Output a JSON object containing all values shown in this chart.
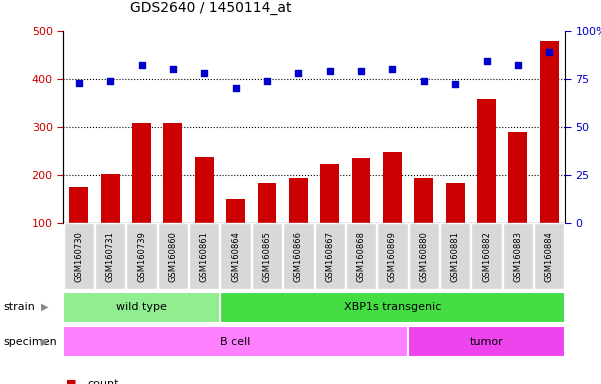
{
  "title": "GDS2640 / 1450114_at",
  "samples": [
    "GSM160730",
    "GSM160731",
    "GSM160739",
    "GSM160860",
    "GSM160861",
    "GSM160864",
    "GSM160865",
    "GSM160866",
    "GSM160867",
    "GSM160868",
    "GSM160869",
    "GSM160880",
    "GSM160881",
    "GSM160882",
    "GSM160883",
    "GSM160884"
  ],
  "counts": [
    175,
    202,
    308,
    307,
    237,
    150,
    183,
    194,
    222,
    235,
    247,
    194,
    183,
    358,
    290,
    478
  ],
  "percentiles": [
    73,
    74,
    82,
    80,
    78,
    70,
    74,
    78,
    79,
    79,
    80,
    74,
    72,
    84,
    82,
    89
  ],
  "strain_groups": [
    {
      "label": "wild type",
      "start": 0,
      "end": 5,
      "color": "#90EE90"
    },
    {
      "label": "XBP1s transgenic",
      "start": 5,
      "end": 16,
      "color": "#44DD44"
    }
  ],
  "specimen_groups": [
    {
      "label": "B cell",
      "start": 0,
      "end": 11,
      "color": "#FF80FF"
    },
    {
      "label": "tumor",
      "start": 11,
      "end": 16,
      "color": "#EE44EE"
    }
  ],
  "ylim_left": [
    100,
    500
  ],
  "ylim_right": [
    0,
    100
  ],
  "yticks_left": [
    100,
    200,
    300,
    400,
    500
  ],
  "yticks_right": [
    0,
    25,
    50,
    75,
    100
  ],
  "bar_color": "#CC0000",
  "dot_color": "#0000CC",
  "bg_color": "#FFFFFF",
  "left_label_color": "#CC0000",
  "right_label_color": "#0000CC"
}
